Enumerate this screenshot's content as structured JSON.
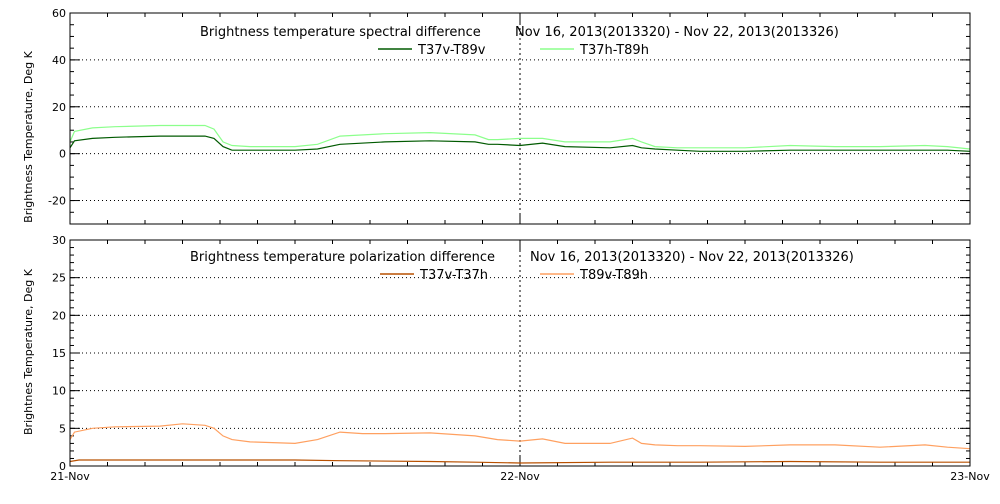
{
  "chart_data": [
    {
      "type": "line",
      "title": "Brightness temperature spectral difference",
      "date_range": "Nov 16, 2013(2013320) - Nov 22, 2013(2013326)",
      "ylabel": "Brightness Temperature, Deg K",
      "xlabel": "",
      "ylim": [
        -30,
        60
      ],
      "xlim": [
        0,
        2
      ],
      "yticks": [
        "-20",
        "0",
        "20",
        "40",
        "60"
      ],
      "ytick_values": [
        -20,
        0,
        20,
        40,
        60
      ],
      "grid_values": [
        -20,
        0,
        20,
        40
      ],
      "grid": true,
      "legend_position": "top-center",
      "series": [
        {
          "name": "T37v-T89v",
          "color": "#005a00",
          "x": [
            0.0,
            0.01,
            0.05,
            0.1,
            0.2,
            0.3,
            0.32,
            0.34,
            0.36,
            0.4,
            0.5,
            0.55,
            0.6,
            0.7,
            0.8,
            0.9,
            0.93,
            0.95,
            1.0,
            1.05,
            1.1,
            1.2,
            1.25,
            1.27,
            1.3,
            1.35,
            1.4,
            1.5,
            1.6,
            1.7,
            1.8,
            1.9,
            1.95,
            2.0
          ],
          "values": [
            2.5,
            5.5,
            6.5,
            7,
            7.5,
            7.5,
            6.5,
            3,
            1.5,
            1.5,
            1.5,
            2,
            4,
            5,
            5.5,
            5,
            4,
            4,
            3.5,
            4.5,
            3,
            2.5,
            3.5,
            2.5,
            2,
            1.5,
            1,
            1,
            1.5,
            1.5,
            1.5,
            1.5,
            1.5,
            1
          ]
        },
        {
          "name": "T37h-T89h",
          "color": "#8cff8c",
          "x": [
            0.0,
            0.01,
            0.05,
            0.1,
            0.2,
            0.3,
            0.32,
            0.34,
            0.36,
            0.4,
            0.5,
            0.55,
            0.6,
            0.7,
            0.8,
            0.9,
            0.93,
            0.95,
            1.0,
            1.05,
            1.1,
            1.2,
            1.25,
            1.27,
            1.3,
            1.35,
            1.4,
            1.5,
            1.6,
            1.7,
            1.8,
            1.9,
            1.95,
            2.0
          ],
          "values": [
            5,
            9.5,
            11,
            11.5,
            12,
            12,
            10.5,
            5,
            3.5,
            3,
            3,
            4,
            7.5,
            8.5,
            9,
            8,
            6,
            6,
            6.5,
            6.5,
            5,
            5,
            6.5,
            5,
            3,
            2.5,
            2.5,
            2.5,
            3.5,
            3,
            3,
            3.5,
            3,
            2
          ]
        }
      ]
    },
    {
      "type": "line",
      "title": "Brightness temperature polarization difference",
      "date_range": "Nov 16, 2013(2013320) - Nov 22, 2013(2013326)",
      "ylabel": "Brightnes Temperature, Deg K",
      "xlabel": "",
      "ylim": [
        0,
        30
      ],
      "xlim": [
        0,
        2
      ],
      "yticks": [
        "0",
        "5",
        "10",
        "15",
        "20",
        "25",
        "30"
      ],
      "ytick_values": [
        0,
        5,
        10,
        15,
        20,
        25,
        30
      ],
      "grid_values": [
        5,
        10,
        15,
        20,
        25
      ],
      "grid": true,
      "legend_position": "top-center",
      "categories": [
        "21-Nov",
        "22-Nov",
        "23-Nov"
      ],
      "category_values": [
        0,
        1,
        2
      ],
      "series": [
        {
          "name": "T37v-T37h",
          "color": "#b85000",
          "x": [
            0.0,
            0.02,
            0.3,
            0.5,
            0.6,
            0.8,
            0.9,
            1.0,
            1.2,
            1.4,
            1.6,
            1.8,
            2.0
          ],
          "values": [
            0.6,
            0.8,
            0.8,
            0.8,
            0.7,
            0.6,
            0.5,
            0.4,
            0.5,
            0.5,
            0.6,
            0.5,
            0.5
          ]
        },
        {
          "name": "T89v-T89h",
          "color": "#ffa060",
          "x": [
            0.0,
            0.01,
            0.05,
            0.1,
            0.2,
            0.25,
            0.3,
            0.32,
            0.34,
            0.36,
            0.4,
            0.5,
            0.55,
            0.6,
            0.65,
            0.7,
            0.8,
            0.85,
            0.9,
            0.95,
            1.0,
            1.05,
            1.1,
            1.2,
            1.25,
            1.27,
            1.3,
            1.35,
            1.4,
            1.5,
            1.6,
            1.7,
            1.8,
            1.9,
            1.95,
            2.0
          ],
          "values": [
            3.5,
            4.5,
            5,
            5.2,
            5.3,
            5.6,
            5.4,
            5,
            4,
            3.5,
            3.2,
            3,
            3.5,
            4.5,
            4.3,
            4.3,
            4.4,
            4.2,
            4,
            3.5,
            3.3,
            3.6,
            3,
            3,
            3.7,
            3,
            2.8,
            2.7,
            2.7,
            2.6,
            2.8,
            2.8,
            2.5,
            2.8,
            2.5,
            2.3
          ]
        }
      ]
    }
  ]
}
